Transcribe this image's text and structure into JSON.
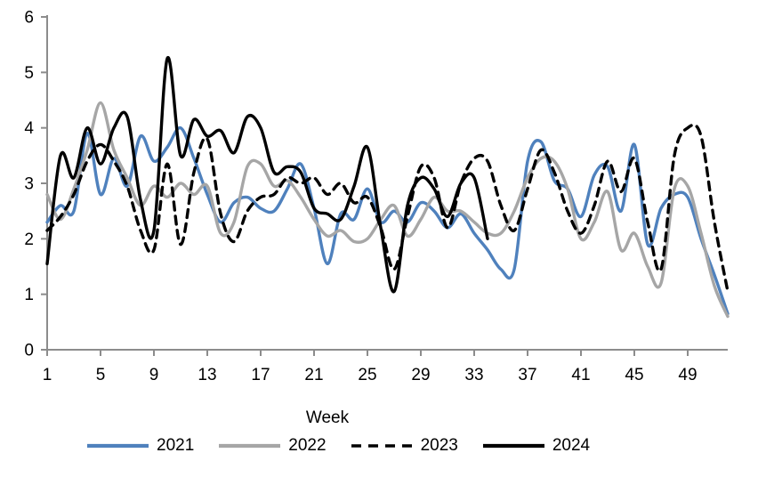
{
  "chart_data": {
    "type": "line",
    "title": "",
    "xlabel": "Week",
    "ylabel": "",
    "xlim": [
      1,
      52
    ],
    "ylim": [
      0,
      6
    ],
    "x_ticks": [
      1,
      5,
      9,
      13,
      17,
      21,
      25,
      29,
      33,
      37,
      41,
      45,
      49
    ],
    "y_ticks": [
      0,
      1,
      2,
      3,
      4,
      5,
      6
    ],
    "grid": "off",
    "legend_position": "bottom",
    "axis_color": "#8c8c8c",
    "x_unit": "week",
    "series": [
      {
        "name": "2021",
        "color": "#4F81BD",
        "line_style": "solid",
        "start_week": 1,
        "values": [
          2.3,
          2.6,
          2.5,
          3.9,
          2.8,
          3.45,
          2.95,
          3.85,
          3.4,
          3.65,
          4.0,
          3.45,
          2.8,
          2.3,
          2.65,
          2.75,
          2.55,
          2.5,
          2.9,
          3.35,
          2.55,
          1.55,
          2.45,
          2.35,
          2.9,
          2.3,
          2.5,
          2.3,
          2.65,
          2.5,
          2.2,
          2.45,
          2.1,
          1.8,
          1.45,
          1.45,
          3.4,
          3.75,
          3.05,
          2.9,
          2.4,
          3.15,
          3.3,
          2.5,
          3.7,
          1.9,
          2.55,
          2.8,
          2.75,
          2.0,
          1.35,
          0.65
        ]
      },
      {
        "name": "2022",
        "color": "#A6A6A6",
        "line_style": "solid",
        "start_week": 1,
        "values": [
          2.8,
          2.35,
          2.9,
          3.6,
          4.45,
          3.6,
          3.1,
          2.6,
          2.95,
          2.75,
          3.0,
          2.8,
          2.95,
          2.1,
          2.3,
          3.3,
          3.35,
          2.95,
          3.05,
          2.75,
          2.35,
          2.05,
          2.15,
          1.95,
          2.0,
          2.35,
          2.6,
          2.05,
          2.35,
          2.75,
          2.5,
          2.5,
          2.3,
          2.1,
          2.1,
          2.5,
          3.1,
          3.45,
          3.4,
          2.9,
          2.0,
          2.3,
          2.85,
          1.8,
          2.1,
          1.5,
          1.2,
          2.9,
          2.95,
          2.1,
          1.15,
          0.6
        ]
      },
      {
        "name": "2023",
        "color": "#000000",
        "line_style": "dashed",
        "start_week": 1,
        "values": [
          2.15,
          2.4,
          2.8,
          3.4,
          3.7,
          3.4,
          2.95,
          2.15,
          1.8,
          3.35,
          1.9,
          3.2,
          3.8,
          2.45,
          1.95,
          2.5,
          2.75,
          2.8,
          3.1,
          3.0,
          3.1,
          2.8,
          3.0,
          2.65,
          2.75,
          2.2,
          1.45,
          2.4,
          3.3,
          3.1,
          2.2,
          3.0,
          3.45,
          3.4,
          2.6,
          2.15,
          2.9,
          3.6,
          3.2,
          2.5,
          2.1,
          2.6,
          3.4,
          2.85,
          3.45,
          2.3,
          1.45,
          3.5,
          4.0,
          3.85,
          2.3,
          1.05
        ]
      },
      {
        "name": "2024",
        "color": "#000000",
        "line_style": "solid",
        "start_week": 1,
        "values": [
          1.55,
          3.5,
          3.1,
          4.0,
          3.35,
          4.0,
          4.2,
          2.7,
          2.15,
          5.25,
          3.5,
          4.15,
          3.85,
          3.95,
          3.55,
          4.2,
          4.0,
          3.2,
          3.3,
          3.2,
          2.55,
          2.45,
          2.35,
          2.95,
          3.65,
          2.2,
          1.05,
          2.6,
          3.1,
          2.9,
          2.4,
          3.0,
          3.1,
          2.0
        ]
      }
    ]
  }
}
